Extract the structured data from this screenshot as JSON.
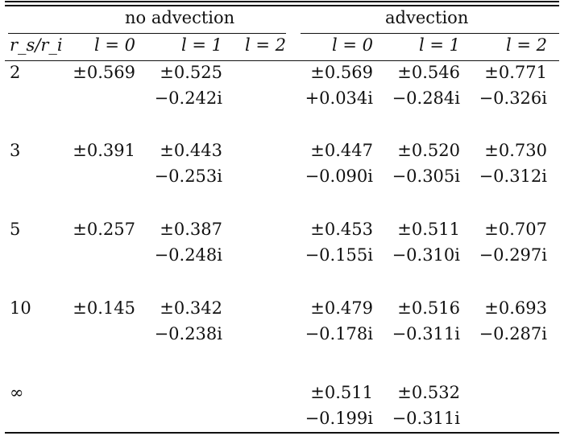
{
  "table": {
    "groups": {
      "no_advection": "no advection",
      "advection": "advection"
    },
    "headers": [
      "r_s/r_i",
      "l = 0",
      "l = 1",
      "l = 2",
      "l = 0",
      "l = 1",
      "l = 2"
    ],
    "rows": [
      {
        "rs_ri": "2",
        "cells": [
          [
            "±0.569",
            ""
          ],
          [
            "±0.525",
            "−0.242i"
          ],
          [
            "",
            ""
          ],
          [
            "±0.569",
            "+0.034i"
          ],
          [
            "±0.546",
            "−0.284i"
          ],
          [
            "±0.771",
            "−0.326i"
          ]
        ]
      },
      {
        "rs_ri": "3",
        "cells": [
          [
            "±0.391",
            ""
          ],
          [
            "±0.443",
            "−0.253i"
          ],
          [
            "",
            ""
          ],
          [
            "±0.447",
            "−0.090i"
          ],
          [
            "±0.520",
            "−0.305i"
          ],
          [
            "±0.730",
            "−0.312i"
          ]
        ]
      },
      {
        "rs_ri": "5",
        "cells": [
          [
            "±0.257",
            ""
          ],
          [
            "±0.387",
            "−0.248i"
          ],
          [
            "",
            ""
          ],
          [
            "±0.453",
            "−0.155i"
          ],
          [
            "±0.511",
            "−0.310i"
          ],
          [
            "±0.707",
            "−0.297i"
          ]
        ]
      },
      {
        "rs_ri": "10",
        "cells": [
          [
            "±0.145",
            ""
          ],
          [
            "±0.342",
            "−0.238i"
          ],
          [
            "",
            ""
          ],
          [
            "±0.479",
            "−0.178i"
          ],
          [
            "±0.516",
            "−0.311i"
          ],
          [
            "±0.693",
            "−0.287i"
          ]
        ]
      },
      {
        "rs_ri": "∞",
        "cells": [
          [
            "",
            ""
          ],
          [
            "",
            ""
          ],
          [
            "",
            ""
          ],
          [
            "±0.511",
            "−0.199i"
          ],
          [
            "±0.532",
            "−0.311i"
          ],
          [
            "",
            ""
          ]
        ]
      }
    ]
  }
}
